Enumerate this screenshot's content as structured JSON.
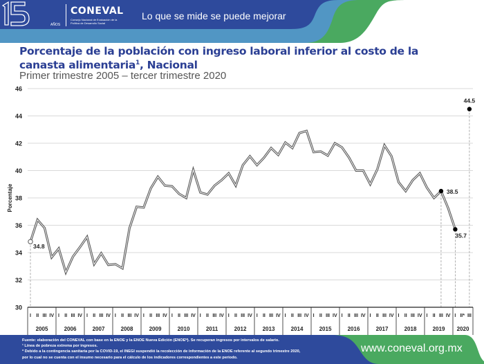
{
  "header": {
    "logo_number": "15",
    "logo_years": "AÑOS",
    "logo_name": "CONEVAL",
    "logo_subtitle": "Consejo Nacional de Evaluación de la Política de Desarrollo Social",
    "tagline": "Lo que se mide se puede mejorar",
    "colors": {
      "dark_blue": "#2e4a9c",
      "light_blue": "#5196c4",
      "green": "#4aa960"
    }
  },
  "chart_data": {
    "type": "line",
    "title": "Porcentaje de la población con ingreso laboral inferior al costo de la canasta alimentaria",
    "title_superscript": "1",
    "title_suffix": ", Nacional",
    "subtitle": "Primer trimestre 2005 – tercer trimestre 2020",
    "ylabel": "Porcentaje",
    "xlabel": "",
    "ylim": [
      30,
      46
    ],
    "yticks": [
      "30",
      "32",
      "34",
      "36",
      "38",
      "40",
      "42",
      "44",
      "46"
    ],
    "grid": true,
    "years": [
      "2005",
      "2006",
      "2007",
      "2008",
      "2009",
      "2010",
      "2011",
      "2012",
      "2013",
      "2014",
      "2015",
      "2016",
      "2017",
      "2018",
      "2019",
      "2020"
    ],
    "quarter_labels": [
      "I",
      "II",
      "III",
      "IV"
    ],
    "quarter_labels_2020": [
      "I",
      "II*",
      "III"
    ],
    "series": [
      {
        "name": "Nacional",
        "values": [
          34.8,
          36.4,
          35.8,
          33.65,
          34.3,
          32.55,
          33.7,
          34.4,
          35.15,
          33.15,
          33.95,
          33.1,
          33.15,
          32.85,
          35.8,
          37.35,
          37.3,
          38.7,
          39.55,
          38.9,
          38.85,
          38.3,
          38.0,
          40.05,
          38.4,
          38.25,
          38.9,
          39.3,
          39.8,
          38.9,
          40.4,
          41.05,
          40.4,
          40.95,
          41.65,
          41.15,
          42.05,
          41.65,
          42.75,
          42.9,
          41.35,
          41.4,
          41.1,
          42.0,
          41.7,
          40.95,
          40.0,
          40.0,
          39.0,
          40.1,
          41.85,
          41.05,
          39.15,
          38.5,
          39.3,
          39.8,
          38.75,
          38.0,
          38.5,
          37.25,
          35.7,
          null,
          44.5
        ]
      }
    ],
    "annotations": [
      {
        "index": 0,
        "label": "34.8",
        "marker": "open-circle"
      },
      {
        "index": 58,
        "label": "38.5",
        "marker": "filled-circle"
      },
      {
        "index": 60,
        "label": "35.7",
        "marker": "filled-circle"
      },
      {
        "index": 62,
        "label": "44.5",
        "marker": "filled-circle"
      }
    ],
    "line_color": "#5a5a5a"
  },
  "footer": {
    "note_source": "Fuente: elaboración del CONEVAL con base en la ENOE y la ENOE Nueva Edición (ENOEᴺ). Se recuperan ingresos por intervalos de salario.",
    "note_1": "¹ Línea de pobreza extrema por ingresos.",
    "note_2": "* Debido a la contingencia sanitaria por la COVID-19, el INEGI suspendió la recolección de información de la ENOE referente al segundo trimestre 2020,",
    "note_3": "por lo cual no se cuenta con el insumo necesario para el cálculo de los indicadores correspondientes a este periodo.",
    "url": "www.coneval.org.mx"
  }
}
